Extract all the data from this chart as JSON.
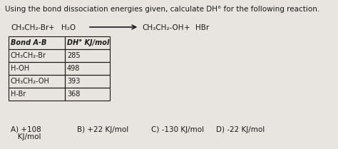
{
  "title": "Using the bond dissociation energies given, calculate DH° for the following reaction.",
  "rxn_left1": "CH₃CH₂-Br",
  "rxn_plus1": "+",
  "rxn_left2": "H₂O",
  "rxn_right1": "CH₃CH₂-OH",
  "rxn_plus2": "+",
  "rxn_right2": "HBr",
  "table_headers": [
    "Bond A-B",
    "DH° KJ/mol"
  ],
  "table_rows": [
    [
      "CH₃CH₂-Br",
      "285"
    ],
    [
      "H-OH",
      "498"
    ],
    [
      "CH₃CH₂-OH",
      "393"
    ],
    [
      "H-Br",
      "368"
    ]
  ],
  "answer_A_line1": "A) +108",
  "answer_A_line2": "   KJ/mol",
  "answer_B": "B) +22 KJ/mol",
  "answer_C": "C) -130 KJ/mol",
  "answer_D": "D) -22 KJ/mol",
  "bg_color": "#e8e5e0",
  "text_color": "#1a1a1a",
  "table_border_color": "#1a1a1a"
}
